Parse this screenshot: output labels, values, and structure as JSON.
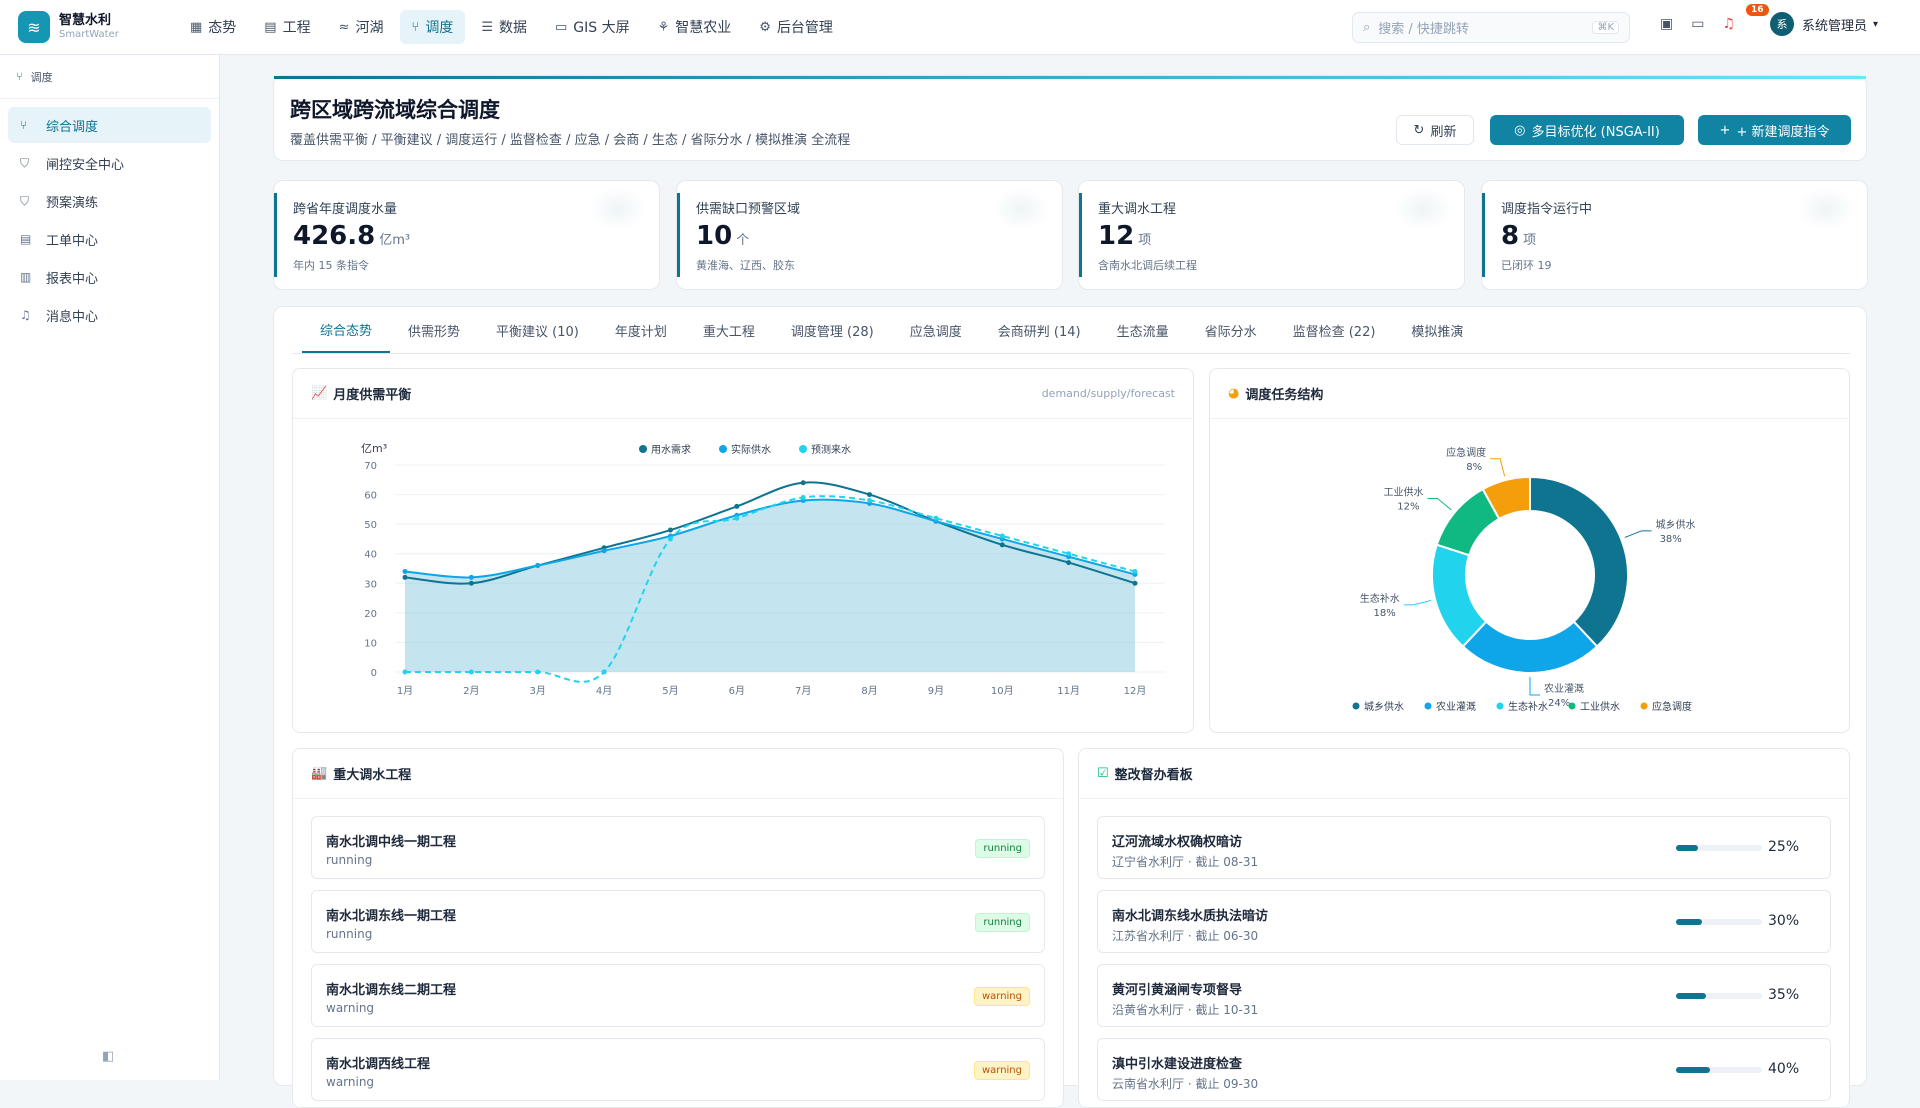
{
  "brand": {
    "name": "智慧水利",
    "sub": "SmartWater"
  },
  "nav": [
    {
      "label": "态势",
      "icon": "grid-icon",
      "active": false
    },
    {
      "label": "工程",
      "icon": "building-icon",
      "active": false
    },
    {
      "label": "河湖",
      "icon": "wave-icon",
      "active": false
    },
    {
      "label": "调度",
      "icon": "branch-icon",
      "active": true
    },
    {
      "label": "数据",
      "icon": "database-icon",
      "active": false
    },
    {
      "label": "GIS 大屏",
      "icon": "monitor-icon",
      "active": false
    },
    {
      "label": "智慧农业",
      "icon": "sprout-icon",
      "active": false
    },
    {
      "label": "后台管理",
      "icon": "gear-icon",
      "active": false
    }
  ],
  "search": {
    "placeholder": "搜索 / 快捷跳转",
    "kbd": "⌘K"
  },
  "notif_count": "16",
  "user": {
    "avatar": "系",
    "name": "系统管理员"
  },
  "sidebar": {
    "header": "调度",
    "items": [
      {
        "label": "综合调度",
        "active": true
      },
      {
        "label": "闸控安全中心",
        "active": false
      },
      {
        "label": "预案演练",
        "active": false
      },
      {
        "label": "工单中心",
        "active": false
      },
      {
        "label": "报表中心",
        "active": false
      },
      {
        "label": "消息中心",
        "active": false
      }
    ]
  },
  "hero": {
    "title": "跨区域跨流域综合调度",
    "subtitle": "覆盖供需平衡 / 平衡建议 / 调度运行 / 监督检查 / 应急 / 会商 / 生态 / 省际分水 / 模拟推演 全流程",
    "refresh": "刷新",
    "optimize": "多目标优化 (NSGA-II)",
    "new": "+ 新建调度指令"
  },
  "stats": [
    {
      "label": "跨省年度调度水量",
      "value": "426.8",
      "unit": "亿m³",
      "note": "年内 15 条指令"
    },
    {
      "label": "供需缺口预警区域",
      "value": "10",
      "unit": "个",
      "note": "黄淮海、辽西、胶东"
    },
    {
      "label": "重大调水工程",
      "value": "12",
      "unit": "项",
      "note": "含南水北调后续工程"
    },
    {
      "label": "调度指令运行中",
      "value": "8",
      "unit": "项",
      "note": "已闭环 19"
    }
  ],
  "tabs": [
    "综合态势",
    "供需形势",
    "平衡建议 (10)",
    "年度计划",
    "重大工程",
    "调度管理 (28)",
    "应急调度",
    "会商研判 (14)",
    "生态流量",
    "省际分水",
    "监督检查 (22)",
    "模拟推演"
  ],
  "line_card": {
    "title": "月度供需平衡",
    "hint": "demand/supply/forecast"
  },
  "pie_card": {
    "title": "调度任务结构"
  },
  "chart_data": [
    {
      "type": "line",
      "ylabel": "亿m³",
      "ylim": [
        0,
        70
      ],
      "yticks": [
        0,
        10,
        20,
        30,
        40,
        50,
        60,
        70
      ],
      "categories": [
        "1月",
        "2月",
        "3月",
        "4月",
        "5月",
        "6月",
        "7月",
        "8月",
        "9月",
        "10月",
        "11月",
        "12月"
      ],
      "legend_position": "top",
      "series": [
        {
          "name": "用水需求",
          "color": "#0e7490",
          "values": [
            32,
            30,
            36,
            42,
            48,
            56,
            64,
            60,
            51,
            43,
            37,
            30
          ]
        },
        {
          "name": "实际供水",
          "color": "#0ea5e9",
          "values": [
            34,
            32,
            36,
            41,
            46,
            53,
            58,
            57,
            51,
            45,
            39,
            33
          ]
        },
        {
          "name": "预测来水",
          "color": "#22d3ee",
          "dashed": true,
          "values": [
            0,
            0,
            0,
            0,
            45,
            52,
            59,
            58,
            52,
            46,
            40,
            34
          ]
        }
      ]
    },
    {
      "type": "pie",
      "donut": true,
      "legend_position": "bottom",
      "slices": [
        {
          "name": "城乡供水",
          "value": 38,
          "label": "38%",
          "color": "#0e7490"
        },
        {
          "name": "农业灌溉",
          "value": 24,
          "label": "24%",
          "color": "#0ea5e9"
        },
        {
          "name": "生态补水",
          "value": 18,
          "label": "18%",
          "color": "#22d3ee"
        },
        {
          "name": "工业供水",
          "value": 12,
          "label": "12%",
          "color": "#10b981"
        },
        {
          "name": "应急调度",
          "value": 8,
          "label": "8%",
          "color": "#f59e0b"
        }
      ]
    }
  ],
  "projects": {
    "title": "重大调水工程",
    "items": [
      {
        "name": "南水北调中线一期工程",
        "status": "running"
      },
      {
        "name": "南水北调东线一期工程",
        "status": "running"
      },
      {
        "name": "南水北调东线二期工程",
        "status": "warning"
      },
      {
        "name": "南水北调西线工程",
        "status": "warning"
      }
    ]
  },
  "rectify": {
    "title": "整改督办看板",
    "items": [
      {
        "name": "辽河流域水权确权暗访",
        "org": "辽宁省水利厅 · 截止 08-31",
        "progress": 25,
        "pct": "25%"
      },
      {
        "name": "南水北调东线水质执法暗访",
        "org": "江苏省水利厅 · 截止 06-30",
        "progress": 30,
        "pct": "30%"
      },
      {
        "name": "黄河引黄涵闸专项督导",
        "org": "沿黄省水利厅 · 截止 10-31",
        "progress": 35,
        "pct": "35%"
      },
      {
        "name": "滇中引水建设进度检查",
        "org": "云南省水利厅 · 截止 09-30",
        "progress": 40,
        "pct": "40%"
      }
    ]
  }
}
